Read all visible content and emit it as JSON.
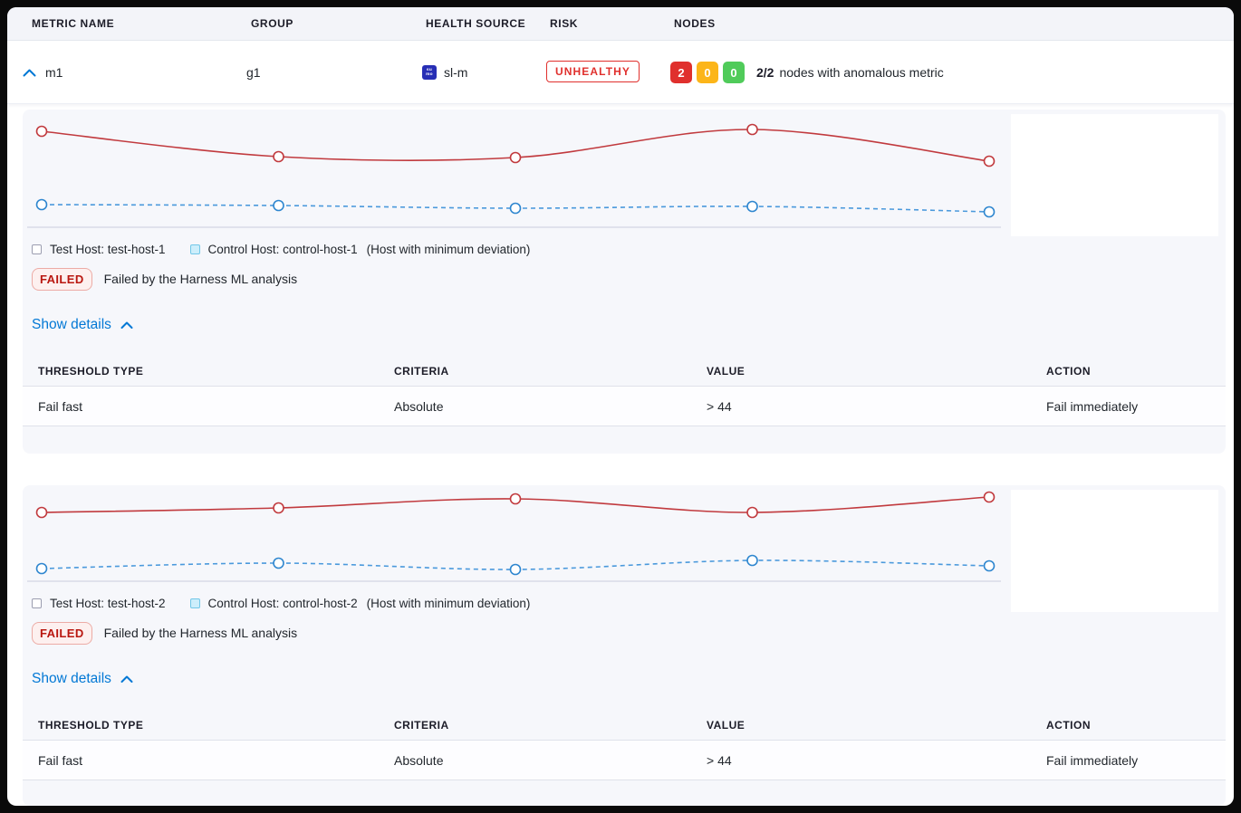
{
  "header": {
    "columns": [
      "METRIC NAME",
      "GROUP",
      "HEALTH SOURCE",
      "RISK",
      "NODES"
    ]
  },
  "metric_row": {
    "metric_name": "m1",
    "group": "g1",
    "health_source": {
      "icon": "sumo-logic-icon",
      "icon_lines": [
        "su",
        "mo"
      ],
      "label": "sl-m"
    },
    "risk_badge": "UNHEALTHY",
    "nodes": {
      "counts": [
        {
          "value": "2",
          "color": "#e0302d"
        },
        {
          "value": "0",
          "color": "#fcb519"
        },
        {
          "value": "0",
          "color": "#50cb5a"
        }
      ],
      "ratio": "2/2",
      "summary": "nodes with anomalous metric"
    }
  },
  "sections": [
    {
      "legend": {
        "test": "Test Host: test-host-1",
        "control": "Control Host: control-host-1",
        "note": "(Host with minimum deviation)"
      },
      "status": {
        "badge": "FAILED",
        "message": "Failed by the Harness ML analysis"
      },
      "toggle": "Show details",
      "table": {
        "headers": [
          "THRESHOLD TYPE",
          "CRITERIA",
          "VALUE",
          "ACTION"
        ],
        "rows": [
          [
            "Fail fast",
            "Absolute",
            "> 44",
            "Fail immediately"
          ]
        ]
      }
    },
    {
      "legend": {
        "test": "Test Host: test-host-2",
        "control": "Control Host: control-host-2",
        "note": "(Host with minimum deviation)"
      },
      "status": {
        "badge": "FAILED",
        "message": "Failed by the Harness ML analysis"
      },
      "toggle": "Show details",
      "table": {
        "headers": [
          "THRESHOLD TYPE",
          "CRITERIA",
          "VALUE",
          "ACTION"
        ],
        "rows": [
          [
            "Fail fast",
            "Absolute",
            "> 44",
            "Fail immediately"
          ]
        ]
      }
    }
  ],
  "chart_data": [
    {
      "type": "line",
      "title": "",
      "x": [
        1,
        2,
        3,
        4,
        5
      ],
      "axis_labels_visible": false,
      "value_units": "relative height above baseline (no numeric axes shown in chart)",
      "series": [
        {
          "name": "Test Host: test-host-1",
          "color": "#c13a3e",
          "line_style": "solid",
          "values": [
            106,
            78,
            77,
            108,
            73
          ]
        },
        {
          "name": "Control Host: control-host-1",
          "color": "#4a99dc",
          "marker_color": "#2e86cf",
          "line_style": "dashed",
          "values": [
            25,
            24,
            21,
            23,
            17
          ]
        }
      ],
      "layout": {
        "height": 136,
        "axis_y": 128,
        "grid": false,
        "legend_position": "bottom-left"
      }
    },
    {
      "type": "line",
      "title": "",
      "x": [
        1,
        2,
        3,
        4,
        5
      ],
      "axis_labels_visible": false,
      "value_units": "relative height above baseline (no numeric axes shown in chart)",
      "series": [
        {
          "name": "Test Host: test-host-2",
          "color": "#c13a3e",
          "line_style": "solid",
          "values": [
            76,
            81,
            91,
            76,
            93
          ]
        },
        {
          "name": "Control Host: control-host-2",
          "color": "#4a99dc",
          "marker_color": "#2e86cf",
          "line_style": "dashed",
          "values": [
            14,
            20,
            13,
            23,
            17
          ]
        }
      ],
      "layout": {
        "height": 112,
        "axis_y": 104,
        "grid": false,
        "legend_position": "bottom-left"
      }
    }
  ],
  "colors": {
    "axis": "#c9cede",
    "accent_blue": "#0278d5",
    "card_bg": "#f6f7fb",
    "risk_red": "#e0302d"
  }
}
